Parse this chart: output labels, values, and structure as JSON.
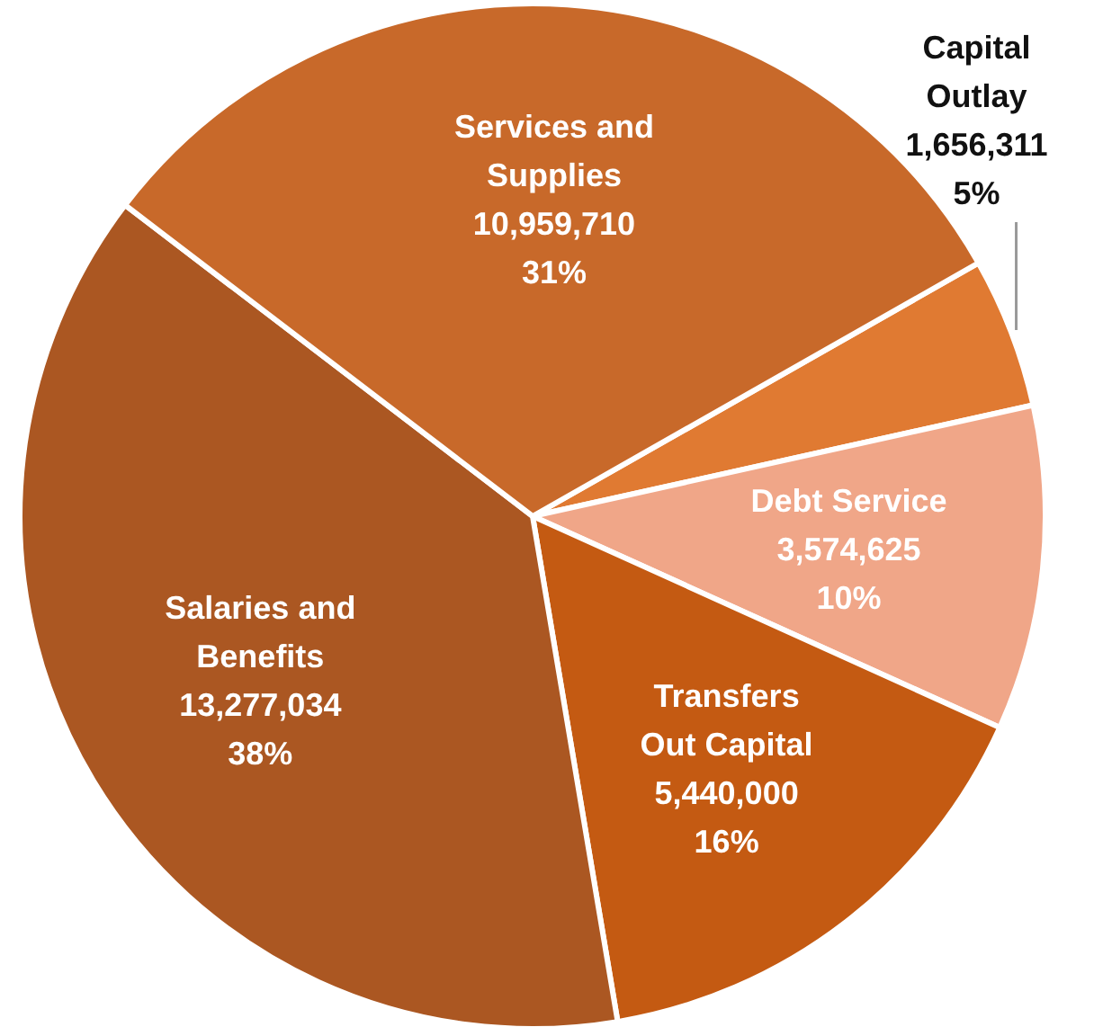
{
  "chart_data": {
    "type": "pie",
    "categories": [
      "Capital Outlay",
      "Debt Service",
      "Transfers Out Capital",
      "Salaries and Benefits",
      "Services and Supplies"
    ],
    "values": [
      1656311,
      3574625,
      5440000,
      13277034,
      10959710
    ],
    "colors": [
      "#e07a32",
      "#f0a688",
      "#c45a12",
      "#ab5722",
      "#c8692a"
    ],
    "value_labels": [
      "1,656,311\n5%",
      "3,574,625\n10%",
      "5,440,000\n16%",
      "13,277,034\n38%",
      "10,959,710\n31%"
    ]
  }
}
